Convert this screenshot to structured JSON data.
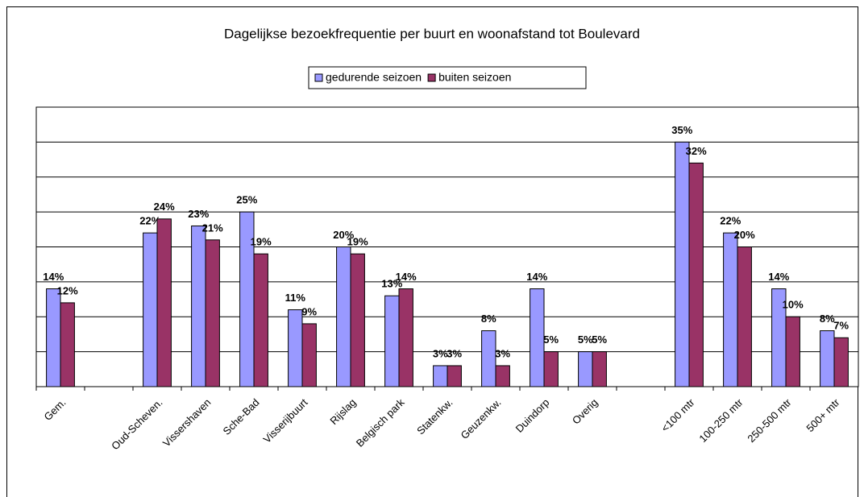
{
  "chart_data": {
    "type": "bar",
    "title": "Dagelijkse bezoekfrequentie per buurt en woonafstand tot Boulevard",
    "categories": [
      "Gem.",
      null,
      "Oud-Scheven.",
      "Vissershaven",
      "Sche-Bad",
      "Visserijbuurt",
      "Rijslag",
      "Belgisch park",
      "Statenkw.",
      "Geuzenkw.",
      "Duindorp",
      "Overig",
      null,
      "<100 mtr",
      "100-250 mtr",
      "250-500 mtr",
      "500+ mtr"
    ],
    "series": [
      {
        "name": "gedurende seizoen",
        "color": "#9999ff",
        "values": [
          14,
          null,
          22,
          23,
          25,
          11,
          20,
          13,
          3,
          8,
          14,
          5,
          null,
          35,
          22,
          14,
          8
        ],
        "value_labels": [
          "14%",
          null,
          "22%",
          "23%",
          "25%",
          "11%",
          "20%",
          "13%",
          "3%",
          "8%",
          "14%",
          "5%",
          null,
          "35%",
          "22%",
          "14%",
          "8%"
        ]
      },
      {
        "name": "buiten seizoen",
        "color": "#993366",
        "values": [
          12,
          null,
          24,
          21,
          19,
          9,
          19,
          14,
          3,
          3,
          5,
          5,
          null,
          32,
          20,
          10,
          7
        ],
        "value_labels": [
          "12%",
          null,
          "24%",
          "21%",
          "19%",
          "9%",
          "19%",
          "14%",
          "3%",
          "3%",
          "5%",
          "5%",
          null,
          "32%",
          "20%",
          "10%",
          "7%"
        ]
      }
    ],
    "ylim": [
      0,
      40
    ],
    "yticks": [
      0,
      5,
      10,
      15,
      20,
      25,
      30,
      35,
      40
    ],
    "grid": true,
    "legend": "top"
  }
}
